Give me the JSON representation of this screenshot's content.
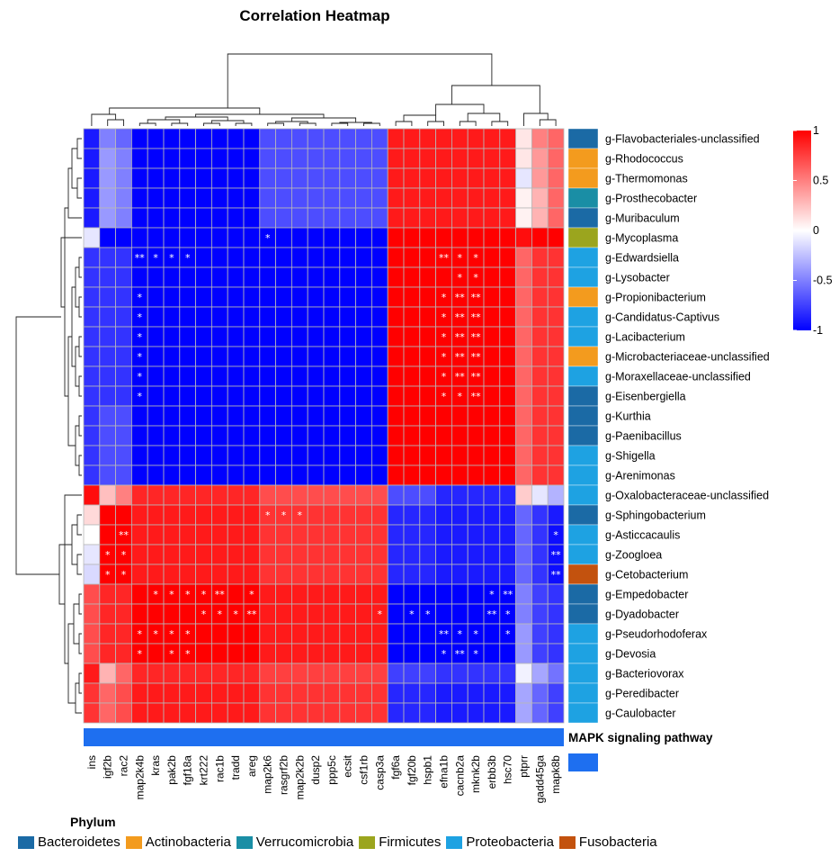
{
  "chart_data": {
    "type": "heatmap",
    "title": "Correlation Heatmap",
    "columns": [
      "ins",
      "igf2b",
      "rac2",
      "map2k4b",
      "kras",
      "pak2b",
      "fgf18a",
      "krt222",
      "rac1b",
      "tradd",
      "areg",
      "map2k6",
      "rasgrf2b",
      "map2k2b",
      "dusp2",
      "ppp5c",
      "ecsit",
      "csf1rb",
      "casp3a",
      "fgf6a",
      "fgf20b",
      "hspb1",
      "efna1b",
      "cacnb2a",
      "mknk2b",
      "erbb3b",
      "hsc70",
      "ptprr",
      "gadd45ga",
      "mapk8b"
    ],
    "rows": [
      "g-Flavobacteriales-unclassified",
      "g-Rhodococcus",
      "g-Thermomonas",
      "g-Prosthecobacter",
      "g-Muribaculum",
      "g-Mycoplasma",
      "g-Edwardsiella",
      "g-Lysobacter",
      "g-Propionibacterium",
      "g-Candidatus-Captivus",
      "g-Lacibacterium",
      "g-Microbacteriaceae-unclassified",
      "g-Moraxellaceae-unclassified",
      "g-Eisenbergiella",
      "g-Kurthia",
      "g-Paenibacillus",
      "g-Shigella",
      "g-Arenimonas",
      "g-Oxalobacteraceae-unclassified",
      "g-Sphingobacterium",
      "g-Asticcacaulis",
      "g-Zoogloea",
      "g-Cetobacterium",
      "g-Empedobacter",
      "g-Dyadobacter",
      "g-Pseudorhodoferax",
      "g-Devosia",
      "g-Bacteriovorax",
      "g-Peredibacter",
      "g-Caulobacter"
    ],
    "row_phylum": [
      "Bacteroidetes",
      "Actinobacteria",
      "Actinobacteria",
      "Verrucomicrobia",
      "Bacteroidetes",
      "Firmicutes",
      "Proteobacteria",
      "Proteobacteria",
      "Actinobacteria",
      "Proteobacteria",
      "Proteobacteria",
      "Actinobacteria",
      "Proteobacteria",
      "Bacteroidetes",
      "Bacteroidetes",
      "Bacteroidetes",
      "Proteobacteria",
      "Proteobacteria",
      "Proteobacteria",
      "Bacteroidetes",
      "Proteobacteria",
      "Proteobacteria",
      "Fusobacteria",
      "Bacteroidetes",
      "Bacteroidetes",
      "Proteobacteria",
      "Proteobacteria",
      "Proteobacteria",
      "Proteobacteria",
      "Proteobacteria"
    ],
    "values": [
      [
        -0.9,
        -0.5,
        -0.6,
        -1,
        -1,
        -1,
        -1,
        -1,
        -1,
        -1,
        -1,
        -0.7,
        -0.7,
        -0.7,
        -0.7,
        -0.7,
        -0.7,
        -0.7,
        -0.7,
        0.9,
        0.9,
        0.9,
        0.9,
        0.9,
        0.9,
        0.9,
        0.9,
        0.1,
        0.5,
        0.6
      ],
      [
        -0.9,
        -0.4,
        -0.5,
        -1,
        -1,
        -1,
        -1,
        -1,
        -1,
        -1,
        -1,
        -0.7,
        -0.7,
        -0.7,
        -0.7,
        -0.7,
        -0.7,
        -0.7,
        -0.7,
        0.9,
        0.9,
        0.9,
        0.9,
        0.9,
        0.9,
        0.9,
        0.9,
        0.1,
        0.4,
        0.6
      ],
      [
        -0.9,
        -0.4,
        -0.5,
        -1,
        -1,
        -1,
        -1,
        -1,
        -1,
        -1,
        -1,
        -0.7,
        -0.7,
        -0.7,
        -0.7,
        -0.7,
        -0.7,
        -0.7,
        -0.7,
        0.9,
        0.9,
        0.9,
        0.9,
        0.9,
        0.9,
        0.9,
        0.9,
        -0.1,
        0.4,
        0.6
      ],
      [
        -0.9,
        -0.4,
        -0.5,
        -1,
        -1,
        -1,
        -1,
        -1,
        -1,
        -1,
        -1,
        -0.7,
        -0.7,
        -0.7,
        -0.7,
        -0.7,
        -0.7,
        -0.7,
        -0.7,
        0.9,
        0.9,
        0.9,
        0.9,
        0.9,
        0.9,
        0.9,
        0.9,
        0.05,
        0.3,
        0.6
      ],
      [
        -0.9,
        -0.4,
        -0.5,
        -1,
        -1,
        -1,
        -1,
        -1,
        -1,
        -1,
        -1,
        -0.7,
        -0.7,
        -0.7,
        -0.7,
        -0.7,
        -0.7,
        -0.7,
        -0.7,
        0.9,
        0.9,
        0.9,
        0.9,
        0.9,
        0.9,
        0.9,
        0.9,
        0.05,
        0.3,
        0.6
      ],
      [
        -0.1,
        -1,
        -1,
        -1,
        -1,
        -1,
        -1,
        -1,
        -1,
        -1,
        -1,
        -1,
        -1,
        -1,
        -1,
        -1,
        -1,
        -1,
        -1,
        1,
        1,
        1,
        1,
        1,
        1,
        1,
        1,
        0.95,
        1,
        1
      ],
      [
        -0.8,
        -0.8,
        -0.8,
        -1,
        -1,
        -1,
        -1,
        -1,
        -1,
        -1,
        -1,
        -1,
        -1,
        -1,
        -1,
        -1,
        -1,
        -1,
        -1,
        1,
        1,
        1,
        1,
        1,
        1,
        1,
        1,
        0.6,
        0.8,
        0.8
      ],
      [
        -0.8,
        -0.8,
        -0.8,
        -1,
        -1,
        -1,
        -1,
        -1,
        -1,
        -1,
        -1,
        -1,
        -1,
        -1,
        -1,
        -1,
        -1,
        -1,
        -1,
        1,
        1,
        1,
        1,
        1,
        1,
        1,
        1,
        0.6,
        0.8,
        0.8
      ],
      [
        -0.8,
        -0.8,
        -0.8,
        -1,
        -1,
        -1,
        -1,
        -1,
        -1,
        -1,
        -1,
        -1,
        -1,
        -1,
        -1,
        -1,
        -1,
        -1,
        -1,
        1,
        1,
        1,
        1,
        1,
        1,
        1,
        1,
        0.6,
        0.8,
        0.8
      ],
      [
        -0.8,
        -0.8,
        -0.8,
        -1,
        -1,
        -1,
        -1,
        -1,
        -1,
        -1,
        -1,
        -1,
        -1,
        -1,
        -1,
        -1,
        -1,
        -1,
        -1,
        1,
        1,
        1,
        1,
        1,
        1,
        1,
        1,
        0.6,
        0.8,
        0.8
      ],
      [
        -0.8,
        -0.8,
        -0.8,
        -1,
        -1,
        -1,
        -1,
        -1,
        -1,
        -1,
        -1,
        -1,
        -1,
        -1,
        -1,
        -1,
        -1,
        -1,
        -1,
        1,
        1,
        1,
        1,
        1,
        1,
        1,
        1,
        0.6,
        0.8,
        0.8
      ],
      [
        -0.8,
        -0.8,
        -0.8,
        -1,
        -1,
        -1,
        -1,
        -1,
        -1,
        -1,
        -1,
        -1,
        -1,
        -1,
        -1,
        -1,
        -1,
        -1,
        -1,
        1,
        1,
        1,
        1,
        1,
        1,
        1,
        1,
        0.6,
        0.8,
        0.8
      ],
      [
        -0.8,
        -0.8,
        -0.8,
        -1,
        -1,
        -1,
        -1,
        -1,
        -1,
        -1,
        -1,
        -1,
        -1,
        -1,
        -1,
        -1,
        -1,
        -1,
        -1,
        1,
        1,
        1,
        1,
        1,
        1,
        1,
        1,
        0.6,
        0.8,
        0.8
      ],
      [
        -0.8,
        -0.8,
        -0.8,
        -1,
        -1,
        -1,
        -1,
        -1,
        -1,
        -1,
        -1,
        -1,
        -1,
        -1,
        -1,
        -1,
        -1,
        -1,
        -1,
        1,
        1,
        1,
        1,
        1,
        1,
        1,
        1,
        0.6,
        0.8,
        0.8
      ],
      [
        -0.8,
        -0.7,
        -0.7,
        -1,
        -1,
        -1,
        -1,
        -1,
        -1,
        -1,
        -1,
        -1,
        -1,
        -1,
        -1,
        -1,
        -1,
        -1,
        -1,
        1,
        1,
        1,
        1,
        1,
        1,
        1,
        1,
        0.6,
        0.8,
        0.8
      ],
      [
        -0.8,
        -0.7,
        -0.7,
        -1,
        -1,
        -1,
        -1,
        -1,
        -1,
        -1,
        -1,
        -1,
        -1,
        -1,
        -1,
        -1,
        -1,
        -1,
        -1,
        1,
        1,
        1,
        1,
        1,
        1,
        1,
        1,
        0.6,
        0.8,
        0.8
      ],
      [
        -0.8,
        -0.7,
        -0.7,
        -1,
        -1,
        -1,
        -1,
        -1,
        -1,
        -1,
        -1,
        -1,
        -1,
        -1,
        -1,
        -1,
        -1,
        -1,
        -1,
        1,
        1,
        1,
        1,
        1,
        1,
        1,
        1,
        0.6,
        0.8,
        0.8
      ],
      [
        -0.8,
        -0.7,
        -0.7,
        -1,
        -1,
        -1,
        -1,
        -1,
        -1,
        -1,
        -1,
        -1,
        -1,
        -1,
        -1,
        -1,
        -1,
        -1,
        -1,
        1,
        1,
        1,
        1,
        1,
        1,
        1,
        1,
        0.6,
        0.8,
        0.8
      ],
      [
        0.95,
        0.25,
        0.5,
        0.85,
        0.85,
        0.85,
        0.85,
        0.85,
        0.85,
        0.85,
        0.85,
        0.7,
        0.7,
        0.7,
        0.7,
        0.7,
        0.7,
        0.7,
        0.7,
        -0.7,
        -0.7,
        -0.7,
        -0.85,
        -0.85,
        -0.85,
        -0.85,
        -0.85,
        0.2,
        -0.1,
        -0.3
      ],
      [
        0.15,
        1,
        1,
        0.9,
        0.9,
        0.9,
        0.9,
        0.9,
        0.9,
        0.9,
        0.9,
        0.8,
        0.8,
        0.8,
        0.8,
        0.8,
        0.8,
        0.8,
        0.8,
        -0.85,
        -0.85,
        -0.85,
        -0.9,
        -0.9,
        -0.9,
        -0.9,
        -0.9,
        -0.6,
        -0.8,
        -0.9
      ],
      [
        0.0,
        1,
        1,
        0.9,
        0.9,
        0.9,
        0.9,
        0.9,
        0.9,
        0.9,
        0.9,
        0.8,
        0.8,
        0.8,
        0.8,
        0.8,
        0.8,
        0.8,
        0.8,
        -0.85,
        -0.85,
        -0.85,
        -0.9,
        -0.9,
        -0.9,
        -0.9,
        -0.9,
        -0.6,
        -0.8,
        -0.95
      ],
      [
        -0.1,
        1,
        1,
        0.9,
        0.9,
        0.9,
        0.9,
        0.9,
        0.9,
        0.9,
        0.9,
        0.8,
        0.8,
        0.8,
        0.8,
        0.8,
        0.8,
        0.8,
        0.8,
        -0.85,
        -0.85,
        -0.85,
        -0.9,
        -0.9,
        -0.9,
        -0.9,
        -0.9,
        -0.6,
        -0.8,
        -0.95
      ],
      [
        -0.15,
        1,
        1,
        0.9,
        0.9,
        0.9,
        0.9,
        0.9,
        0.9,
        0.9,
        0.9,
        0.8,
        0.8,
        0.8,
        0.8,
        0.8,
        0.8,
        0.8,
        0.8,
        -0.85,
        -0.85,
        -0.85,
        -0.9,
        -0.9,
        -0.9,
        -0.9,
        -0.9,
        -0.6,
        -0.8,
        -0.95
      ],
      [
        0.7,
        0.85,
        0.85,
        1,
        1,
        1,
        1,
        1,
        1,
        1,
        1,
        0.9,
        0.9,
        0.9,
        0.9,
        0.9,
        0.9,
        0.9,
        0.9,
        -1,
        -1,
        -1,
        -1,
        -1,
        -1,
        -1,
        -1,
        -0.5,
        -0.75,
        -0.8
      ],
      [
        0.7,
        0.85,
        0.85,
        1,
        1,
        1,
        1,
        1,
        1,
        1,
        1,
        0.9,
        0.9,
        0.9,
        0.9,
        0.9,
        0.9,
        0.9,
        0.9,
        -1,
        -1,
        -1,
        -1,
        -1,
        -1,
        -1,
        -1,
        -0.5,
        -0.75,
        -0.8
      ],
      [
        0.7,
        0.85,
        0.85,
        1,
        1,
        1,
        1,
        1,
        1,
        1,
        1,
        0.9,
        0.9,
        0.9,
        0.9,
        0.9,
        0.9,
        0.9,
        0.9,
        -1,
        -1,
        -1,
        -1,
        -1,
        -1,
        -1,
        -1,
        -0.4,
        -0.75,
        -0.8
      ],
      [
        0.7,
        0.85,
        0.85,
        1,
        1,
        1,
        1,
        1,
        1,
        1,
        1,
        0.9,
        0.9,
        0.9,
        0.9,
        0.9,
        0.9,
        0.9,
        0.9,
        -1,
        -1,
        -1,
        -1,
        -1,
        -1,
        -1,
        -1,
        -0.4,
        -0.75,
        -0.8
      ],
      [
        0.9,
        0.3,
        0.6,
        0.85,
        0.85,
        0.85,
        0.85,
        0.85,
        0.85,
        0.85,
        0.85,
        0.75,
        0.75,
        0.75,
        0.75,
        0.75,
        0.75,
        0.75,
        0.75,
        -0.75,
        -0.75,
        -0.75,
        -0.8,
        -0.8,
        -0.8,
        -0.8,
        -0.8,
        -0.05,
        -0.35,
        -0.55
      ],
      [
        0.8,
        0.6,
        0.7,
        0.9,
        0.9,
        0.9,
        0.9,
        0.9,
        0.9,
        0.9,
        0.9,
        0.8,
        0.8,
        0.8,
        0.8,
        0.8,
        0.8,
        0.8,
        0.8,
        -0.85,
        -0.85,
        -0.85,
        -0.9,
        -0.9,
        -0.9,
        -0.9,
        -0.9,
        -0.35,
        -0.6,
        -0.75
      ],
      [
        0.8,
        0.6,
        0.7,
        0.9,
        0.9,
        0.9,
        0.9,
        0.9,
        0.9,
        0.9,
        0.9,
        0.8,
        0.8,
        0.8,
        0.8,
        0.8,
        0.8,
        0.8,
        0.8,
        -0.85,
        -0.85,
        -0.85,
        -0.9,
        -0.9,
        -0.9,
        -0.9,
        -0.9,
        -0.35,
        -0.6,
        -0.75
      ]
    ],
    "significance": [
      [
        5,
        11,
        "*"
      ],
      [
        6,
        3,
        "**"
      ],
      [
        6,
        4,
        "*"
      ],
      [
        6,
        5,
        "*"
      ],
      [
        6,
        6,
        "*"
      ],
      [
        6,
        22,
        "**"
      ],
      [
        6,
        23,
        "*"
      ],
      [
        6,
        24,
        "*"
      ],
      [
        7,
        23,
        "*"
      ],
      [
        7,
        24,
        "*"
      ],
      [
        8,
        3,
        "*"
      ],
      [
        8,
        22,
        "*"
      ],
      [
        8,
        23,
        "**"
      ],
      [
        8,
        24,
        "**"
      ],
      [
        9,
        3,
        "*"
      ],
      [
        9,
        22,
        "*"
      ],
      [
        9,
        23,
        "**"
      ],
      [
        9,
        24,
        "**"
      ],
      [
        10,
        3,
        "*"
      ],
      [
        10,
        22,
        "*"
      ],
      [
        10,
        23,
        "**"
      ],
      [
        10,
        24,
        "**"
      ],
      [
        11,
        3,
        "*"
      ],
      [
        11,
        22,
        "*"
      ],
      [
        11,
        23,
        "**"
      ],
      [
        11,
        24,
        "**"
      ],
      [
        12,
        3,
        "*"
      ],
      [
        12,
        22,
        "*"
      ],
      [
        12,
        23,
        "**"
      ],
      [
        12,
        24,
        "**"
      ],
      [
        13,
        3,
        "*"
      ],
      [
        13,
        22,
        "*"
      ],
      [
        13,
        23,
        "*"
      ],
      [
        13,
        24,
        "**"
      ],
      [
        19,
        11,
        "*"
      ],
      [
        19,
        12,
        "*"
      ],
      [
        19,
        13,
        "*"
      ],
      [
        20,
        2,
        "**"
      ],
      [
        20,
        29,
        "*"
      ],
      [
        21,
        1,
        "*"
      ],
      [
        21,
        2,
        "*"
      ],
      [
        21,
        29,
        "**"
      ],
      [
        22,
        1,
        "*"
      ],
      [
        22,
        2,
        "*"
      ],
      [
        22,
        29,
        "**"
      ],
      [
        23,
        4,
        "*"
      ],
      [
        23,
        5,
        "*"
      ],
      [
        23,
        6,
        "*"
      ],
      [
        23,
        7,
        "*"
      ],
      [
        23,
        8,
        "**"
      ],
      [
        23,
        10,
        "*"
      ],
      [
        23,
        25,
        "*"
      ],
      [
        23,
        26,
        "**"
      ],
      [
        24,
        7,
        "*"
      ],
      [
        24,
        8,
        "*"
      ],
      [
        24,
        9,
        "*"
      ],
      [
        24,
        10,
        "**"
      ],
      [
        24,
        18,
        "*"
      ],
      [
        24,
        20,
        "*"
      ],
      [
        24,
        21,
        "*"
      ],
      [
        24,
        25,
        "**"
      ],
      [
        24,
        26,
        "*"
      ],
      [
        25,
        3,
        "*"
      ],
      [
        25,
        4,
        "*"
      ],
      [
        25,
        5,
        "*"
      ],
      [
        25,
        6,
        "*"
      ],
      [
        25,
        22,
        "**"
      ],
      [
        25,
        23,
        "*"
      ],
      [
        25,
        24,
        "*"
      ],
      [
        25,
        26,
        "*"
      ],
      [
        26,
        3,
        "*"
      ],
      [
        26,
        5,
        "*"
      ],
      [
        26,
        6,
        "*"
      ],
      [
        26,
        22,
        "*"
      ],
      [
        26,
        23,
        "**"
      ],
      [
        26,
        24,
        "*"
      ]
    ],
    "colorbar": {
      "ticks": [
        "1",
        "0.5",
        "0",
        "-0.5",
        "-1"
      ],
      "range": [
        -1,
        1
      ],
      "low_color": "#0000FF",
      "mid_color": "#FFFFFF",
      "high_color": "#FF0000"
    },
    "annotation_row_label": "MAPK signaling pathway",
    "annotation_row_color": "#1E6FF0",
    "phylum_legend_title": "Phylum",
    "phylum_colors": {
      "Bacteroidetes": "#1B6AA5",
      "Actinobacteria": "#F39B1E",
      "Verrucomicrobia": "#1A8EA5",
      "Firmicutes": "#9BA51E",
      "Proteobacteria": "#1EA2E2",
      "Fusobacteria": "#C3520E"
    },
    "phylum_order": [
      "Bacteroidetes",
      "Actinobacteria",
      "Verrucomicrobia",
      "Firmicutes",
      "Proteobacteria",
      "Fusobacteria"
    ]
  }
}
